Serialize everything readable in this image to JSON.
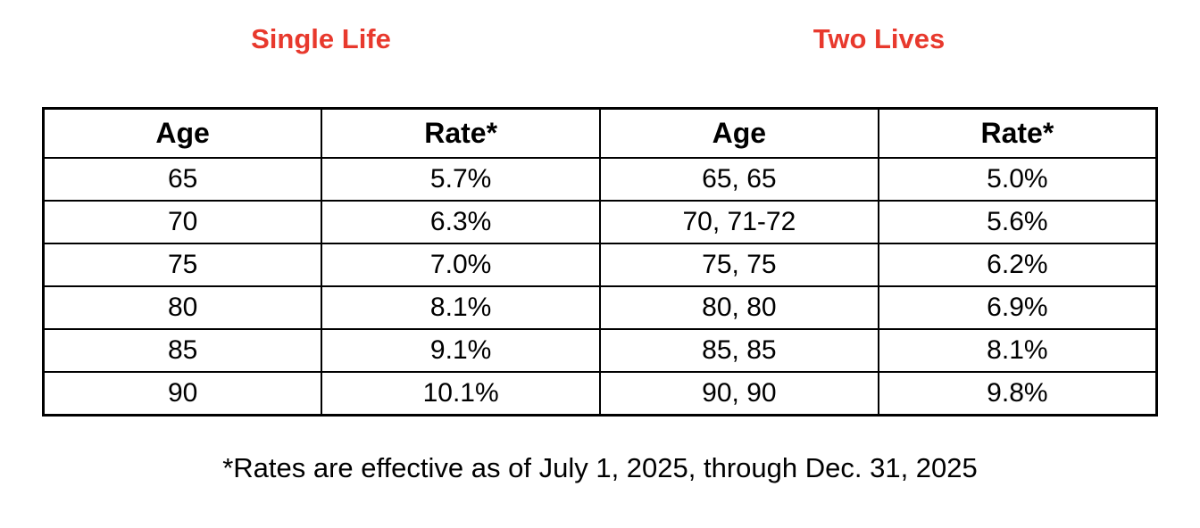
{
  "headings": {
    "single_life": "Single Life",
    "two_lives": "Two Lives"
  },
  "table": {
    "columns": [
      "Age",
      "Rate*",
      "Age",
      "Rate*"
    ],
    "rows": [
      [
        "65",
        "5.7%",
        "65, 65",
        "5.0%"
      ],
      [
        "70",
        "6.3%",
        "70, 71-72",
        "5.6%"
      ],
      [
        "75",
        "7.0%",
        "75, 75",
        "6.2%"
      ],
      [
        "80",
        "8.1%",
        "80, 80",
        "6.9%"
      ],
      [
        "85",
        "9.1%",
        "85, 85",
        "8.1%"
      ],
      [
        "90",
        "10.1%",
        "90, 90",
        "9.8%"
      ]
    ]
  },
  "footnote": "*Rates are effective as of July 1, 2025, through Dec. 31, 2025",
  "colors": {
    "accent_red": "#e8392d",
    "text": "#000000",
    "border": "#000000",
    "background": "#ffffff"
  },
  "chart_data": [
    {
      "type": "table",
      "title": "Single Life",
      "columns": [
        "Age",
        "Rate*"
      ],
      "categories": [
        "65",
        "70",
        "75",
        "80",
        "85",
        "90"
      ],
      "series": [
        {
          "name": "Rate*",
          "values": [
            5.7,
            6.3,
            7.0,
            8.1,
            9.1,
            10.1
          ],
          "unit": "%"
        }
      ]
    },
    {
      "type": "table",
      "title": "Two Lives",
      "columns": [
        "Age",
        "Rate*"
      ],
      "categories": [
        "65, 65",
        "70, 71-72",
        "75, 75",
        "80, 80",
        "85, 85",
        "90, 90"
      ],
      "series": [
        {
          "name": "Rate*",
          "values": [
            5.0,
            5.6,
            6.2,
            6.9,
            8.1,
            9.8
          ],
          "unit": "%"
        }
      ]
    }
  ]
}
